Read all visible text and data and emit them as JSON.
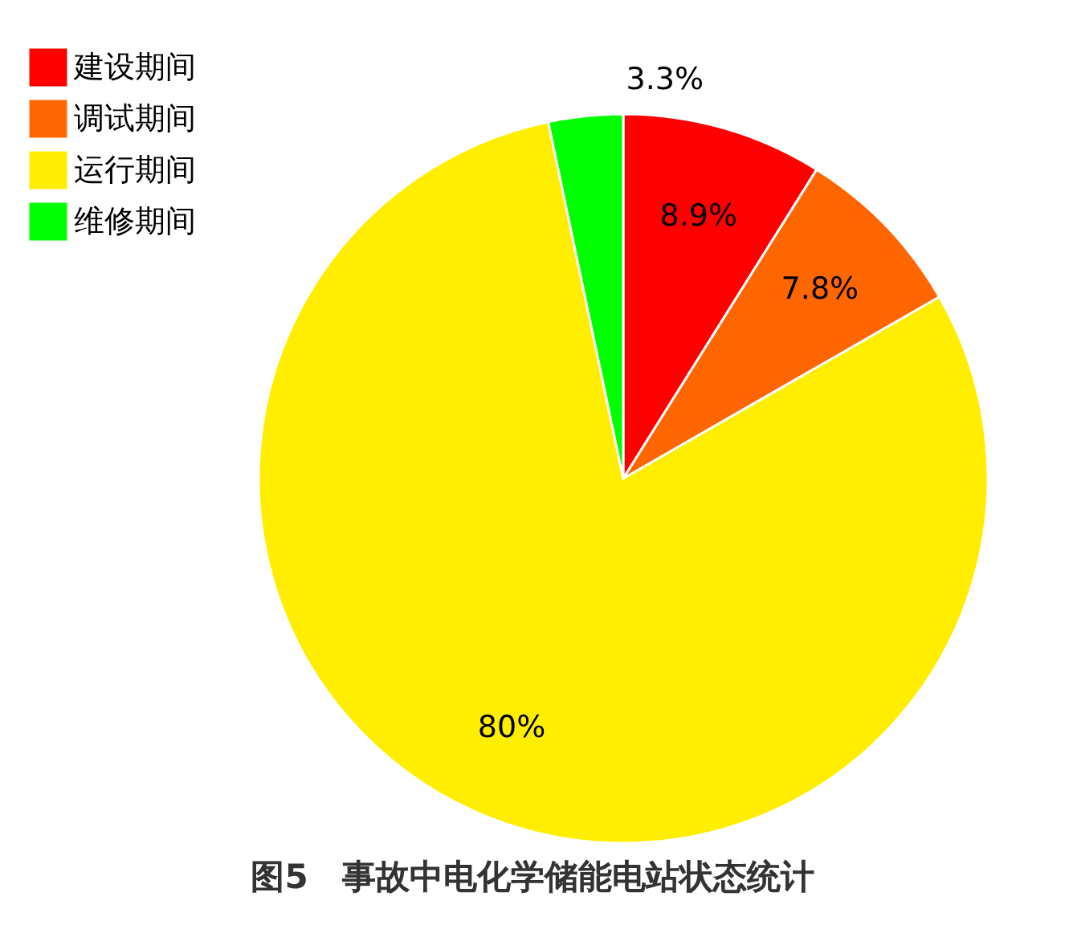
{
  "chart_data": {
    "type": "pie",
    "title": "图5　事故中电化学储能电站状态统计",
    "categories": [
      "建设期间",
      "调试期间",
      "运行期间",
      "维修期间"
    ],
    "values": [
      8.9,
      7.8,
      80,
      3.3
    ],
    "colors": [
      "#ff0000",
      "#ff6600",
      "#ffee00",
      "#00ff00"
    ],
    "value_labels": [
      "8.9%",
      "7.8%",
      "80%",
      "3.3%"
    ],
    "legend": "top left"
  }
}
